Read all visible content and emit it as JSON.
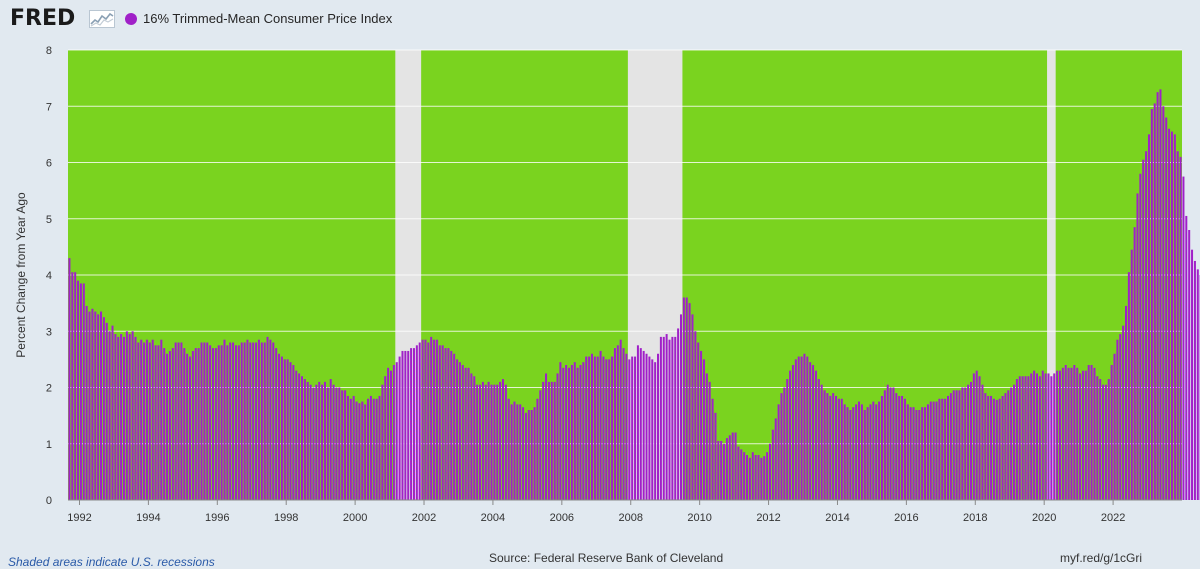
{
  "header": {
    "logo_text": "FRED",
    "series_label": "16% Trimmed-Mean Consumer Price Index"
  },
  "footer": {
    "note": "Shaded areas indicate U.S. recessions",
    "source": "Source: Federal Reserve Bank of Cleveland",
    "link": "myf.red/g/1cGri"
  },
  "colors": {
    "plot_background": "#7ad31f",
    "bar": "#a020c8",
    "recession": "#e4e4e4",
    "page": "#e1e9f0"
  },
  "chart_data": {
    "type": "bar",
    "title": "",
    "xlabel": "",
    "ylabel": "Percent Change from Year Ago",
    "ylim": [
      0,
      8
    ],
    "yticks": [
      0,
      1,
      2,
      3,
      4,
      5,
      6,
      7,
      8
    ],
    "xlim": [
      "1991-09",
      "2023-12"
    ],
    "xticks": [
      "1992",
      "1994",
      "1996",
      "1998",
      "2000",
      "2002",
      "2004",
      "2006",
      "2008",
      "2010",
      "2012",
      "2014",
      "2016",
      "2018",
      "2020",
      "2022"
    ],
    "grid": true,
    "legend": "top-left",
    "recessions": [
      {
        "start": "2001-03",
        "end": "2001-11"
      },
      {
        "start": "2007-12",
        "end": "2009-06"
      },
      {
        "start": "2020-02",
        "end": "2020-04"
      }
    ],
    "series": [
      {
        "name": "16% Trimmed-Mean Consumer Price Index",
        "frequency": "monthly",
        "start": "1991-09",
        "values": [
          4.3,
          4.05,
          4.05,
          3.9,
          3.85,
          3.85,
          3.45,
          3.35,
          3.4,
          3.35,
          3.3,
          3.35,
          3.25,
          3.15,
          3.0,
          3.1,
          2.95,
          2.9,
          2.95,
          2.9,
          3.0,
          2.95,
          3.0,
          2.9,
          2.8,
          2.85,
          2.8,
          2.85,
          2.8,
          2.85,
          2.75,
          2.75,
          2.85,
          2.7,
          2.6,
          2.65,
          2.7,
          2.8,
          2.8,
          2.8,
          2.7,
          2.6,
          2.55,
          2.65,
          2.7,
          2.7,
          2.8,
          2.8,
          2.8,
          2.75,
          2.7,
          2.7,
          2.75,
          2.75,
          2.85,
          2.75,
          2.8,
          2.8,
          2.75,
          2.75,
          2.8,
          2.8,
          2.85,
          2.8,
          2.8,
          2.8,
          2.85,
          2.8,
          2.8,
          2.9,
          2.85,
          2.8,
          2.7,
          2.6,
          2.55,
          2.5,
          2.5,
          2.45,
          2.4,
          2.3,
          2.25,
          2.2,
          2.15,
          2.1,
          2.05,
          2.0,
          2.05,
          2.1,
          2.05,
          2.1,
          2.0,
          2.15,
          2.05,
          2.0,
          2.0,
          1.95,
          1.95,
          1.85,
          1.8,
          1.85,
          1.75,
          1.72,
          1.75,
          1.7,
          1.8,
          1.85,
          1.8,
          1.8,
          1.85,
          2.05,
          2.2,
          2.35,
          2.3,
          2.4,
          2.45,
          2.55,
          2.65,
          2.65,
          2.65,
          2.7,
          2.7,
          2.75,
          2.8,
          2.85,
          2.85,
          2.8,
          2.9,
          2.85,
          2.85,
          2.75,
          2.75,
          2.7,
          2.7,
          2.65,
          2.6,
          2.5,
          2.45,
          2.4,
          2.35,
          2.35,
          2.25,
          2.2,
          2.05,
          2.05,
          2.1,
          2.05,
          2.1,
          2.05,
          2.05,
          2.05,
          2.1,
          2.15,
          2.05,
          1.8,
          1.7,
          1.75,
          1.7,
          1.7,
          1.65,
          1.55,
          1.6,
          1.6,
          1.65,
          1.8,
          1.95,
          2.1,
          2.25,
          2.1,
          2.1,
          2.1,
          2.25,
          2.45,
          2.35,
          2.4,
          2.35,
          2.4,
          2.45,
          2.35,
          2.4,
          2.45,
          2.55,
          2.55,
          2.6,
          2.55,
          2.55,
          2.65,
          2.55,
          2.5,
          2.5,
          2.55,
          2.7,
          2.75,
          2.85,
          2.7,
          2.6,
          2.5,
          2.55,
          2.55,
          2.75,
          2.7,
          2.65,
          2.6,
          2.55,
          2.5,
          2.45,
          2.6,
          2.9,
          2.9,
          2.95,
          2.85,
          2.9,
          2.9,
          3.05,
          3.3,
          3.6,
          3.6,
          3.5,
          3.3,
          3.0,
          2.8,
          2.65,
          2.5,
          2.25,
          2.1,
          1.8,
          1.55,
          1.05,
          1.05,
          1.0,
          1.1,
          1.15,
          1.2,
          1.2,
          0.95,
          0.9,
          0.85,
          0.8,
          0.75,
          0.85,
          0.8,
          0.8,
          0.75,
          0.78,
          0.85,
          1.0,
          1.25,
          1.45,
          1.7,
          1.9,
          2.0,
          2.15,
          2.3,
          2.4,
          2.5,
          2.55,
          2.55,
          2.6,
          2.55,
          2.45,
          2.4,
          2.3,
          2.15,
          2.05,
          1.95,
          1.9,
          1.85,
          1.9,
          1.85,
          1.8,
          1.8,
          1.7,
          1.65,
          1.6,
          1.65,
          1.7,
          1.75,
          1.7,
          1.6,
          1.65,
          1.7,
          1.75,
          1.7,
          1.75,
          1.85,
          1.95,
          2.05,
          2.0,
          2.0,
          1.9,
          1.85,
          1.85,
          1.8,
          1.7,
          1.65,
          1.65,
          1.6,
          1.6,
          1.65,
          1.65,
          1.7,
          1.75,
          1.75,
          1.75,
          1.8,
          1.8,
          1.8,
          1.85,
          1.9,
          1.95,
          1.95,
          1.95,
          2.0,
          2.0,
          2.05,
          2.1,
          2.25,
          2.3,
          2.2,
          2.05,
          1.9,
          1.85,
          1.85,
          1.8,
          1.78,
          1.8,
          1.85,
          1.9,
          1.95,
          2.0,
          2.05,
          2.15,
          2.2,
          2.2,
          2.2,
          2.2,
          2.25,
          2.3,
          2.25,
          2.2,
          2.3,
          2.25,
          2.25,
          2.2,
          2.25,
          2.3,
          2.3,
          2.35,
          2.4,
          2.35,
          2.35,
          2.4,
          2.35,
          2.25,
          2.3,
          2.3,
          2.4,
          2.4,
          2.35,
          2.2,
          2.15,
          2.05,
          2.05,
          2.15,
          2.4,
          2.6,
          2.85,
          2.95,
          3.1,
          3.45,
          4.05,
          4.45,
          4.85,
          5.45,
          5.8,
          6.05,
          6.2,
          6.5,
          6.95,
          7.05,
          7.25,
          7.3,
          7.0,
          6.8,
          6.6,
          6.55,
          6.5,
          6.2,
          6.1,
          5.75,
          5.05,
          4.8,
          4.45,
          4.25,
          4.1,
          4.0
        ]
      }
    ]
  }
}
